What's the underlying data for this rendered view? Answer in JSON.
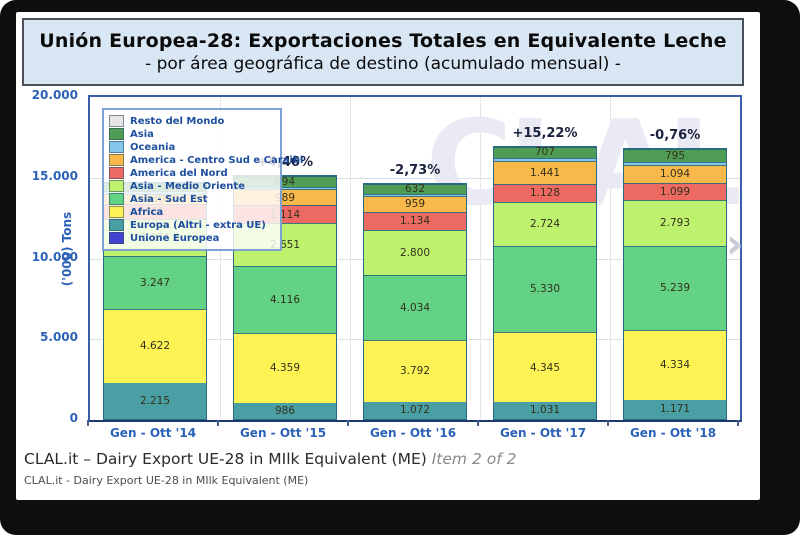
{
  "title_box": {
    "line1": "Unión Europea-28: Exportaciones Totales en Equivalente Leche",
    "line2": "- por área geográfica de destino (acumulado mensual) -"
  },
  "captions": {
    "line1_main": "CLAL.it – Dairy Export UE-28 in MIlk Equivalent (ME) ",
    "line1_item": "Item 2 of 2",
    "line2": "CLAL.it - Dairy Export UE-28 in MIlk Equivalent (ME)"
  },
  "watermark": "CLAL",
  "next_arrow": "›",
  "chart_data": {
    "type": "bar",
    "stacked": true,
    "title": "Unión Europea-28: Exportaciones Totales en Equivalente Leche - por área geográfica de destino (acumulado mensual)",
    "ylabel": "('000) Tons",
    "ylim": [
      0,
      20000
    ],
    "yticks": [
      {
        "value": 0,
        "label": "0"
      },
      {
        "value": 5000,
        "label": "5.000"
      },
      {
        "value": 10000,
        "label": "10.000"
      },
      {
        "value": 15000,
        "label": "15.000"
      },
      {
        "value": 20000,
        "label": "20.000"
      }
    ],
    "grid": true,
    "legend_position": "top-left",
    "colors": {
      "Resto del Mondo": "#e6e6e6",
      "Asia": "#4f9d55",
      "Oceania": "#85c6ea",
      "America - Centro Sud e Caraibi": "#f9b84a",
      "America del Nord": "#ed6a62",
      "Asia - Medio Oriente": "#bef16e",
      "Asia - Sud Est": "#63d285",
      "Africa": "#fdf355",
      "Europa (Altri - extra UE)": "#4a9fa4",
      "Unione Europea": "#4343cf"
    },
    "legend": [
      "Resto del Mondo",
      "Asia",
      "Oceania",
      "America - Centro Sud e Caraibi",
      "America del Nord",
      "Asia - Medio Oriente",
      "Asia - Sud Est",
      "Africa",
      "Europa (Altri - extra UE)",
      "Unione Europea"
    ],
    "categories": [
      "Gen - Ott '14",
      "Gen - Ott '15",
      "Gen - Ott '16",
      "Gen - Ott '17",
      "Gen - Ott '18"
    ],
    "growth_labels": [
      "",
      "+4,46%",
      "-2,73%",
      "+15,22%",
      "-0,76%"
    ],
    "bars": [
      {
        "category": "Gen - Ott '14",
        "segments": [
          {
            "region": "Europa (Altri - extra UE)",
            "value": 2215,
            "label": "2.215"
          },
          {
            "region": "Africa",
            "value": 4622,
            "label": "4.622"
          },
          {
            "region": "Asia - Sud Est",
            "value": 3247,
            "label": "3.247"
          },
          {
            "region": "Asia - Medio Oriente",
            "value": 2274,
            "label": "2.274"
          },
          {
            "region": "America del Nord",
            "value": 961,
            "label": "961"
          },
          {
            "region": "America - Centro Sud e Caraibi",
            "value": 630,
            "label": "630"
          },
          {
            "region": "Oceania",
            "value": 150,
            "label": null
          },
          {
            "region": "Asia",
            "value": 520,
            "label": null
          }
        ]
      },
      {
        "category": "Gen - Ott '15",
        "segments": [
          {
            "region": "Europa (Altri - extra UE)",
            "value": 986,
            "label": "986"
          },
          {
            "region": "Africa",
            "value": 4359,
            "label": "4.359"
          },
          {
            "region": "Asia - Sud Est",
            "value": 4116,
            "label": "4.116"
          },
          {
            "region": "Asia - Medio Oriente",
            "value": 2651,
            "label": "2.651"
          },
          {
            "region": "America del Nord",
            "value": 1114,
            "label": "1.114"
          },
          {
            "region": "America - Centro Sud e Caraibi",
            "value": 989,
            "label": "989"
          },
          {
            "region": "Oceania",
            "value": 150,
            "label": null
          },
          {
            "region": "Asia",
            "value": 694,
            "label": "694"
          }
        ]
      },
      {
        "category": "Gen - Ott '16",
        "segments": [
          {
            "region": "Europa (Altri - extra UE)",
            "value": 1072,
            "label": "1.072"
          },
          {
            "region": "Africa",
            "value": 3792,
            "label": "3.792"
          },
          {
            "region": "Asia - Sud Est",
            "value": 4034,
            "label": "4.034"
          },
          {
            "region": "Asia - Medio Oriente",
            "value": 2800,
            "label": "2.800"
          },
          {
            "region": "America del Nord",
            "value": 1134,
            "label": "1.134"
          },
          {
            "region": "America - Centro Sud e Caraibi",
            "value": 959,
            "label": "959"
          },
          {
            "region": "Oceania",
            "value": 140,
            "label": null
          },
          {
            "region": "Asia",
            "value": 632,
            "label": "632"
          }
        ]
      },
      {
        "category": "Gen - Ott '17",
        "segments": [
          {
            "region": "Europa (Altri - extra UE)",
            "value": 1031,
            "label": "1.031"
          },
          {
            "region": "Africa",
            "value": 4345,
            "label": "4.345"
          },
          {
            "region": "Asia - Sud Est",
            "value": 5330,
            "label": "5.330"
          },
          {
            "region": "Asia - Medio Oriente",
            "value": 2724,
            "label": "2.724"
          },
          {
            "region": "America del Nord",
            "value": 1128,
            "label": "1.128"
          },
          {
            "region": "America - Centro Sud e Caraibi",
            "value": 1441,
            "label": "1.441"
          },
          {
            "region": "Oceania",
            "value": 170,
            "label": null
          },
          {
            "region": "Asia",
            "value": 707,
            "label": "707"
          }
        ]
      },
      {
        "category": "Gen - Ott '18",
        "segments": [
          {
            "region": "Europa (Altri - extra UE)",
            "value": 1171,
            "label": "1.171"
          },
          {
            "region": "Africa",
            "value": 4334,
            "label": "4.334"
          },
          {
            "region": "Asia - Sud Est",
            "value": 5239,
            "label": "5.239"
          },
          {
            "region": "Asia - Medio Oriente",
            "value": 2793,
            "label": "2.793"
          },
          {
            "region": "America del Nord",
            "value": 1099,
            "label": "1.099"
          },
          {
            "region": "America - Centro Sud e Caraibi",
            "value": 1094,
            "label": "1.094"
          },
          {
            "region": "Oceania",
            "value": 180,
            "label": null
          },
          {
            "region": "Asia",
            "value": 795,
            "label": "795"
          }
        ]
      }
    ]
  }
}
